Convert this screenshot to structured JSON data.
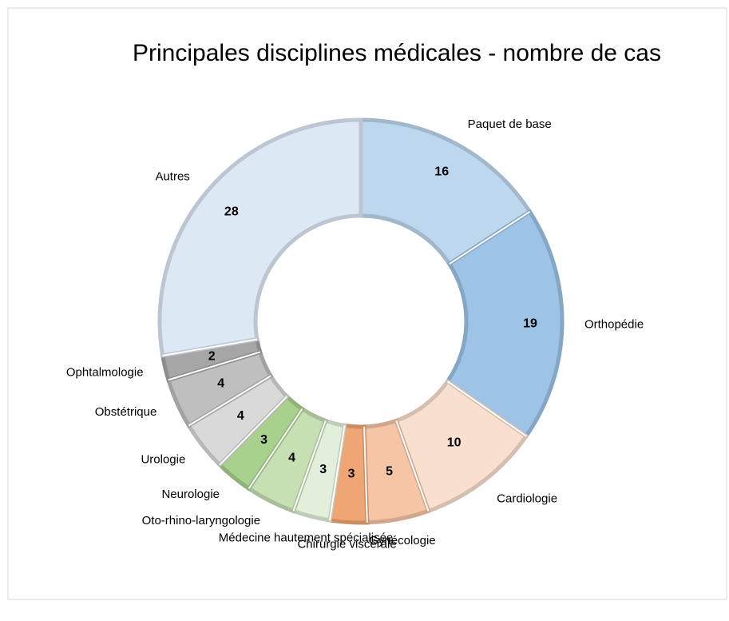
{
  "chart_data": {
    "type": "donut",
    "title": "Principales disciplines médicales - nombre de cas",
    "categories": [
      "Paquet de base",
      "Orthopédie",
      "Cardiologie",
      "Gynécologie",
      "Chirurgie viscérale",
      "Médecine hautement spécialisée",
      "Oto-rhino-laryngologie",
      "Neurologie",
      "Urologie",
      "Obstétrique",
      "Ophtalmologie",
      "Autres"
    ],
    "values": [
      16,
      19,
      10,
      5,
      3,
      3,
      4,
      3,
      4,
      4,
      2,
      28
    ],
    "colors": [
      "#bdd7ee",
      "#9dc3e6",
      "#f8dfcf",
      "#f5c5a5",
      "#f0a674",
      "#e2efda",
      "#c6e0b4",
      "#a9d18e",
      "#d9d9d9",
      "#bfbfbf",
      "#a6a6a6",
      "#dde8f5"
    ]
  }
}
